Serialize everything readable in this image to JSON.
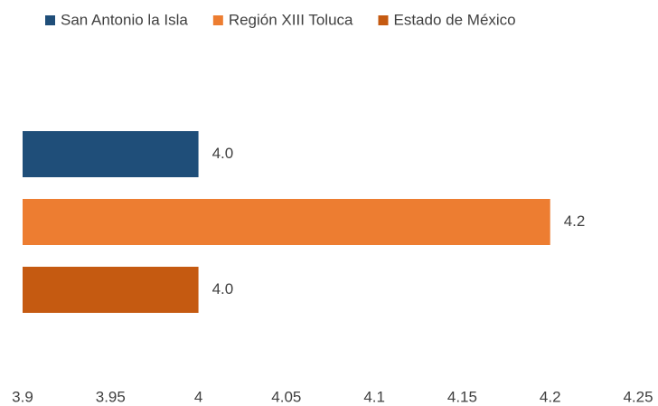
{
  "chart_data": {
    "type": "bar",
    "orientation": "horizontal",
    "categories": [
      null
    ],
    "series": [
      {
        "name": "San Antonio la Isla",
        "color": "#1f4e79",
        "values": [
          4.0
        ],
        "value_labels": [
          "4.0"
        ]
      },
      {
        "name": "Región XIII Toluca",
        "color": "#ed7d31",
        "values": [
          4.2
        ],
        "value_labels": [
          "4.2"
        ]
      },
      {
        "name": "Estado de México",
        "color": "#c55a11",
        "values": [
          4.0
        ],
        "value_labels": [
          "4.0"
        ]
      }
    ],
    "xlim": [
      3.9,
      4.25
    ],
    "xticks": [
      3.9,
      3.95,
      4,
      4.05,
      4.1,
      4.15,
      4.2,
      4.25
    ],
    "legend": "top",
    "grid": false
  }
}
